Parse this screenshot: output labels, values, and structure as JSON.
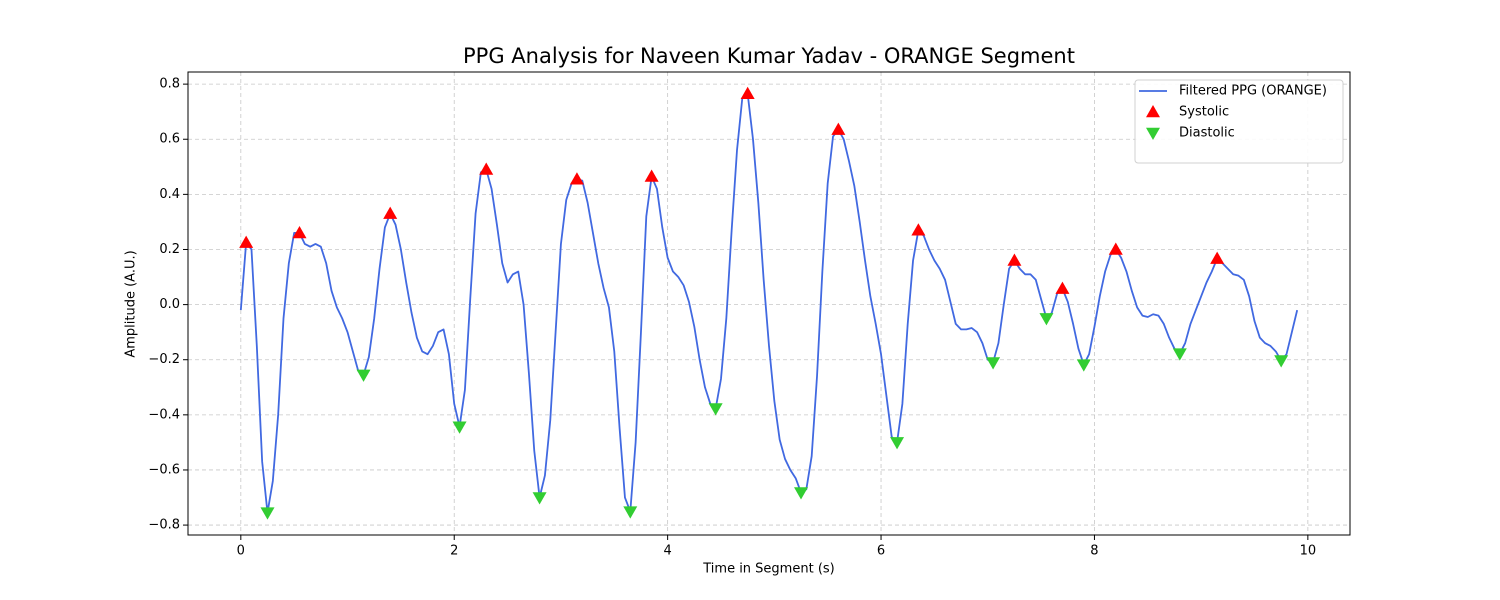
{
  "chart_data": {
    "type": "line",
    "title": "PPG Analysis for Naveen Kumar Yadav - ORANGE Segment",
    "x_label": "Time in Segment (s)",
    "y_label": "Amplitude (A.U.)",
    "xlim": [
      -0.495,
      10.395
    ],
    "ylim": [
      -0.836,
      0.844
    ],
    "xticks": [
      0,
      2,
      4,
      6,
      8,
      10
    ],
    "yticks": [
      {
        "value": -0.8,
        "label": "−0.8"
      },
      {
        "value": -0.6,
        "label": "−0.6"
      },
      {
        "value": -0.4,
        "label": "−0.4"
      },
      {
        "value": -0.2,
        "label": "−0.2"
      },
      {
        "value": 0,
        "label": "0.0"
      },
      0.2,
      0.4,
      0.6,
      0.8
    ],
    "grid": true,
    "legend": "upper right",
    "series": [
      {
        "name": "Filtered PPG (ORANGE)",
        "type": "line",
        "color": "#4169e1",
        "x": [
          0,
          0.05,
          0.1,
          0.15,
          0.2,
          0.25,
          0.3,
          0.35,
          0.4,
          0.45,
          0.5,
          0.55,
          0.6,
          0.65,
          0.7,
          0.75,
          0.8,
          0.85,
          0.9,
          0.95,
          1,
          1.05,
          1.1,
          1.15,
          1.2,
          1.25,
          1.3,
          1.35,
          1.4,
          1.45,
          1.5,
          1.55,
          1.6,
          1.65,
          1.7,
          1.75,
          1.8,
          1.85,
          1.9,
          1.95,
          2,
          2.05,
          2.1,
          2.15,
          2.2,
          2.25,
          2.3,
          2.35,
          2.4,
          2.45,
          2.5,
          2.55,
          2.6,
          2.65,
          2.7,
          2.75,
          2.8,
          2.85,
          2.9,
          2.95,
          3,
          3.05,
          3.1,
          3.15,
          3.2,
          3.25,
          3.3,
          3.35,
          3.4,
          3.45,
          3.5,
          3.55,
          3.6,
          3.65,
          3.7,
          3.75,
          3.8,
          3.85,
          3.9,
          3.95,
          4,
          4.05,
          4.1,
          4.15,
          4.2,
          4.25,
          4.3,
          4.35,
          4.4,
          4.45,
          4.5,
          4.55,
          4.6,
          4.65,
          4.7,
          4.75,
          4.8,
          4.85,
          4.9,
          4.95,
          5,
          5.05,
          5.1,
          5.15,
          5.2,
          5.25,
          5.3,
          5.35,
          5.4,
          5.45,
          5.5,
          5.55,
          5.6,
          5.65,
          5.7,
          5.75,
          5.8,
          5.85,
          5.9,
          5.95,
          6,
          6.05,
          6.1,
          6.15,
          6.2,
          6.25,
          6.3,
          6.35,
          6.4,
          6.45,
          6.5,
          6.55,
          6.6,
          6.65,
          6.7,
          6.75,
          6.8,
          6.85,
          6.9,
          6.95,
          7,
          7.05,
          7.1,
          7.15,
          7.2,
          7.25,
          7.3,
          7.35,
          7.4,
          7.45,
          7.5,
          7.55,
          7.6,
          7.65,
          7.7,
          7.75,
          7.8,
          7.85,
          7.9,
          7.95,
          8,
          8.05,
          8.1,
          8.15,
          8.2,
          8.25,
          8.3,
          8.35,
          8.4,
          8.45,
          8.5,
          8.55,
          8.6,
          8.65,
          8.7,
          8.75,
          8.8,
          8.85,
          8.9,
          8.95,
          9,
          9.05,
          9.1,
          9.15,
          9.2,
          9.25,
          9.3,
          9.35,
          9.4,
          9.45,
          9.5,
          9.55,
          9.6,
          9.65,
          9.7,
          9.75,
          9.8,
          9.85,
          9.9
        ],
        "values": [
          -0.02,
          0.225,
          0.2,
          -0.15,
          -0.57,
          -0.755,
          -0.64,
          -0.4,
          -0.05,
          0.15,
          0.26,
          0.26,
          0.22,
          0.21,
          0.22,
          0.21,
          0.15,
          0.05,
          -0.01,
          -0.05,
          -0.1,
          -0.17,
          -0.24,
          -0.255,
          -0.19,
          -0.05,
          0.13,
          0.28,
          0.33,
          0.29,
          0.2,
          0.08,
          -0.03,
          -0.12,
          -0.17,
          -0.18,
          -0.15,
          -0.1,
          -0.09,
          -0.18,
          -0.36,
          -0.443,
          -0.31,
          0.02,
          0.33,
          0.48,
          0.49,
          0.42,
          0.29,
          0.15,
          0.08,
          0.11,
          0.12,
          0,
          -0.25,
          -0.53,
          -0.7,
          -0.62,
          -0.42,
          -0.1,
          0.22,
          0.38,
          0.44,
          0.455,
          0.45,
          0.37,
          0.26,
          0.15,
          0.06,
          -0.01,
          -0.17,
          -0.45,
          -0.7,
          -0.751,
          -0.5,
          -0.1,
          0.32,
          0.465,
          0.42,
          0.28,
          0.17,
          0.12,
          0.1,
          0.07,
          0.01,
          -0.08,
          -0.2,
          -0.3,
          -0.36,
          -0.377,
          -0.27,
          -0.05,
          0.27,
          0.56,
          0.75,
          0.765,
          0.6,
          0.37,
          0.09,
          -0.15,
          -0.35,
          -0.49,
          -0.56,
          -0.6,
          -0.63,
          -0.682,
          -0.67,
          -0.55,
          -0.26,
          0.12,
          0.44,
          0.61,
          0.635,
          0.6,
          0.52,
          0.43,
          0.3,
          0.16,
          0.03,
          -0.07,
          -0.18,
          -0.33,
          -0.48,
          -0.5,
          -0.36,
          -0.07,
          0.16,
          0.27,
          0.25,
          0.2,
          0.16,
          0.13,
          0.09,
          0.01,
          -0.07,
          -0.09,
          -0.09,
          -0.085,
          -0.1,
          -0.14,
          -0.2,
          -0.21,
          -0.14,
          0,
          0.13,
          0.16,
          0.13,
          0.11,
          0.11,
          0.09,
          0.02,
          -0.05,
          -0.03,
          0.04,
          0.058,
          0.01,
          -0.07,
          -0.16,
          -0.218,
          -0.18,
          -0.08,
          0.03,
          0.12,
          0.18,
          0.2,
          0.17,
          0.12,
          0.05,
          -0.01,
          -0.04,
          -0.045,
          -0.035,
          -0.04,
          -0.07,
          -0.12,
          -0.16,
          -0.178,
          -0.14,
          -0.07,
          -0.02,
          0.03,
          0.08,
          0.12,
          0.167,
          0.15,
          0.13,
          0.11,
          0.105,
          0.09,
          0.03,
          -0.06,
          -0.12,
          -0.14,
          -0.15,
          -0.17,
          -0.203,
          -0.18,
          -0.1,
          -0.02
        ]
      },
      {
        "name": "Systolic",
        "type": "scatter",
        "marker": "^",
        "color": "#ff0000",
        "x": [
          0.05,
          0.55,
          1.4,
          2.3,
          3.15,
          3.85,
          4.75,
          5.6,
          6.35,
          7.25,
          7.7,
          8.2,
          9.15
        ],
        "values": [
          0.225,
          0.26,
          0.33,
          0.49,
          0.455,
          0.465,
          0.765,
          0.635,
          0.27,
          0.16,
          0.058,
          0.2,
          0.167
        ]
      },
      {
        "name": "Diastolic",
        "type": "scatter",
        "marker": "v",
        "color": "#32cd32",
        "x": [
          0.25,
          1.15,
          2.05,
          2.8,
          3.65,
          4.45,
          5.25,
          6.15,
          7.05,
          7.55,
          7.9,
          8.8,
          9.75
        ],
        "values": [
          -0.755,
          -0.255,
          -0.443,
          -0.7,
          -0.751,
          -0.377,
          -0.682,
          -0.5,
          -0.21,
          -0.05,
          -0.218,
          -0.178,
          -0.203
        ]
      }
    ]
  }
}
